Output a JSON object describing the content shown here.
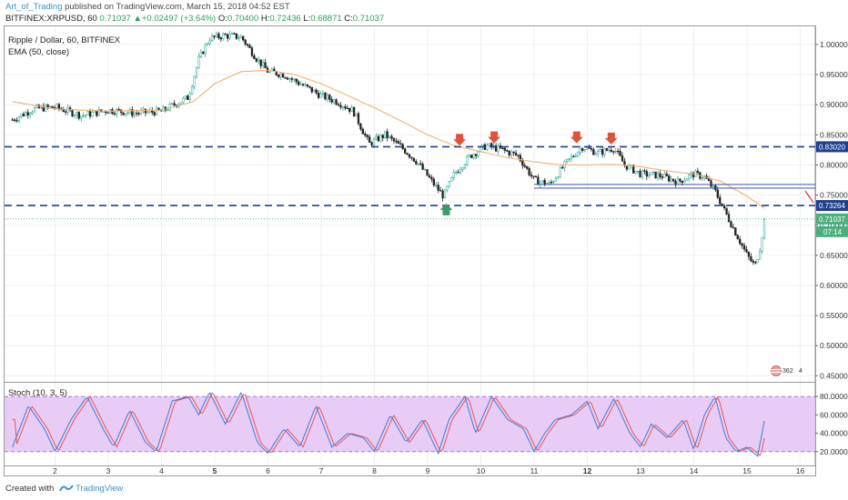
{
  "header": {
    "author": "Art_of_Trading",
    "published_text": "published on TradingView.com, March 15, 2018 04:52 EST"
  },
  "symbol_line": {
    "symbol": "BITFINEX:XRPUSD, 60",
    "price": "0.71037",
    "change": "+0.02497 (+3.64%)",
    "o_label": "O:",
    "o": "0.70400",
    "h_label": "H:",
    "h": "0.72436",
    "l_label": "L:",
    "l": "0.68871",
    "c_label": "C:",
    "c": "0.71037"
  },
  "legend": {
    "title": "Ripple / Dollar, 60, BITFINEX",
    "ema": "EMA (50, close)"
  },
  "stoch_label": "Stoch (10, 3, 5)",
  "footer": {
    "created_with": "Created with",
    "brand": "TradingView"
  },
  "badge": {
    "count": "362",
    "value": "4"
  },
  "colors": {
    "up": "#26a69a",
    "down": "#222222",
    "ema": "#f5b06f",
    "level": "#1f3f8f",
    "stoch_k": "#3b7dd8",
    "stoch_d": "#ef5350",
    "stoch_fill": "#e4c3f5",
    "last_price": "#4caf7d",
    "arrow_down": "#e0533a",
    "arrow_up": "#3d9a6a"
  },
  "chart_data": {
    "type": "candlestick",
    "ylim": [
      0.44,
      1.03
    ],
    "y_ticks": [
      "1.00000",
      "0.95000",
      "0.90000",
      "0.85000",
      "0.80000",
      "0.75000",
      "0.70000",
      "0.65000",
      "0.60000",
      "0.55000",
      "0.50000",
      "0.45000"
    ],
    "x_ticks": [
      "2",
      "3",
      "4",
      "5",
      "6",
      "7",
      "8",
      "9",
      "10",
      "11",
      "12",
      "13",
      "14",
      "15",
      "16"
    ],
    "price_labels": [
      {
        "value": 0.8302,
        "label": "0.83020"
      },
      {
        "value": 0.73264,
        "label": "0.73264"
      },
      {
        "value": 0.71037,
        "label": "0.71037"
      }
    ],
    "countdown": "07:14",
    "horizontal_levels": [
      0.8302,
      0.73264
    ],
    "range_lines": [
      0.7675,
      0.7615
    ],
    "price_path_by_day": [
      [
        1.2,
        0.875
      ],
      [
        1.6,
        0.893
      ],
      [
        2.0,
        0.896
      ],
      [
        2.5,
        0.882
      ],
      [
        3.0,
        0.891
      ],
      [
        3.5,
        0.886
      ],
      [
        4.0,
        0.889
      ],
      [
        4.5,
        0.912
      ],
      [
        4.7,
        0.975
      ],
      [
        4.9,
        1.01
      ],
      [
        5.2,
        1.015
      ],
      [
        5.5,
        1.012
      ],
      [
        5.8,
        0.975
      ],
      [
        6.0,
        0.955
      ],
      [
        6.3,
        0.95
      ],
      [
        6.6,
        0.935
      ],
      [
        7.0,
        0.915
      ],
      [
        7.3,
        0.905
      ],
      [
        7.6,
        0.89
      ],
      [
        7.9,
        0.835
      ],
      [
        8.2,
        0.85
      ],
      [
        8.5,
        0.83
      ],
      [
        8.8,
        0.805
      ],
      [
        9.1,
        0.77
      ],
      [
        9.3,
        0.748
      ],
      [
        9.5,
        0.785
      ],
      [
        9.8,
        0.815
      ],
      [
        10.1,
        0.832
      ],
      [
        10.4,
        0.825
      ],
      [
        10.7,
        0.815
      ],
      [
        11.0,
        0.775
      ],
      [
        11.3,
        0.768
      ],
      [
        11.6,
        0.803
      ],
      [
        11.9,
        0.83
      ],
      [
        12.2,
        0.82
      ],
      [
        12.5,
        0.828
      ],
      [
        12.7,
        0.8
      ],
      [
        13.0,
        0.785
      ],
      [
        13.4,
        0.782
      ],
      [
        13.7,
        0.772
      ],
      [
        14.0,
        0.785
      ],
      [
        14.2,
        0.78
      ],
      [
        14.4,
        0.757
      ],
      [
        14.6,
        0.72
      ],
      [
        14.8,
        0.685
      ],
      [
        15.0,
        0.65
      ],
      [
        15.15,
        0.632
      ],
      [
        15.25,
        0.665
      ],
      [
        15.33,
        0.71
      ]
    ],
    "ema_path_by_day": [
      [
        1.2,
        0.905
      ],
      [
        2.0,
        0.893
      ],
      [
        3.0,
        0.889
      ],
      [
        4.0,
        0.891
      ],
      [
        4.6,
        0.905
      ],
      [
        5.0,
        0.935
      ],
      [
        5.5,
        0.955
      ],
      [
        6.0,
        0.957
      ],
      [
        6.5,
        0.95
      ],
      [
        7.0,
        0.935
      ],
      [
        7.5,
        0.915
      ],
      [
        8.0,
        0.895
      ],
      [
        8.5,
        0.873
      ],
      [
        9.0,
        0.85
      ],
      [
        9.5,
        0.832
      ],
      [
        10.0,
        0.822
      ],
      [
        10.5,
        0.812
      ],
      [
        11.0,
        0.805
      ],
      [
        11.5,
        0.8
      ],
      [
        12.0,
        0.8
      ],
      [
        12.5,
        0.801
      ],
      [
        13.0,
        0.797
      ],
      [
        13.5,
        0.79
      ],
      [
        14.0,
        0.785
      ],
      [
        14.5,
        0.773
      ],
      [
        15.0,
        0.748
      ],
      [
        15.33,
        0.728
      ]
    ],
    "arrows": [
      {
        "day": 9.6,
        "price": 0.838,
        "dir": "down"
      },
      {
        "day": 10.25,
        "price": 0.842,
        "dir": "down"
      },
      {
        "day": 11.8,
        "price": 0.842,
        "dir": "down"
      },
      {
        "day": 12.45,
        "price": 0.84,
        "dir": "down"
      },
      {
        "day": 9.35,
        "price": 0.73,
        "dir": "up"
      }
    ],
    "stoch": {
      "ylim": [
        5,
        95
      ],
      "y_ticks": [
        "80.0000",
        "60.0000",
        "40.0000",
        "20.0000"
      ],
      "bands": [
        80,
        20
      ],
      "k_path_by_day": [
        [
          1.2,
          25
        ],
        [
          1.5,
          70
        ],
        [
          1.8,
          45
        ],
        [
          2.0,
          20
        ],
        [
          2.3,
          55
        ],
        [
          2.6,
          80
        ],
        [
          2.9,
          45
        ],
        [
          3.1,
          25
        ],
        [
          3.4,
          65
        ],
        [
          3.7,
          30
        ],
        [
          3.9,
          20
        ],
        [
          4.2,
          75
        ],
        [
          4.5,
          80
        ],
        [
          4.7,
          60
        ],
        [
          4.9,
          85
        ],
        [
          5.2,
          50
        ],
        [
          5.5,
          85
        ],
        [
          5.8,
          30
        ],
        [
          6.0,
          18
        ],
        [
          6.3,
          45
        ],
        [
          6.6,
          25
        ],
        [
          6.9,
          70
        ],
        [
          7.2,
          25
        ],
        [
          7.5,
          40
        ],
        [
          7.8,
          35
        ],
        [
          8.0,
          20
        ],
        [
          8.3,
          60
        ],
        [
          8.6,
          30
        ],
        [
          8.9,
          55
        ],
        [
          9.2,
          18
        ],
        [
          9.4,
          55
        ],
        [
          9.7,
          80
        ],
        [
          9.9,
          40
        ],
        [
          10.2,
          80
        ],
        [
          10.5,
          55
        ],
        [
          10.8,
          45
        ],
        [
          11.0,
          20
        ],
        [
          11.2,
          40
        ],
        [
          11.4,
          55
        ],
        [
          11.7,
          60
        ],
        [
          12.0,
          75
        ],
        [
          12.2,
          45
        ],
        [
          12.5,
          78
        ],
        [
          12.8,
          40
        ],
        [
          13.0,
          25
        ],
        [
          13.2,
          50
        ],
        [
          13.5,
          35
        ],
        [
          13.8,
          55
        ],
        [
          14.0,
          22
        ],
        [
          14.2,
          60
        ],
        [
          14.4,
          80
        ],
        [
          14.6,
          35
        ],
        [
          14.8,
          20
        ],
        [
          15.0,
          25
        ],
        [
          15.2,
          15
        ],
        [
          15.33,
          55
        ]
      ]
    }
  }
}
